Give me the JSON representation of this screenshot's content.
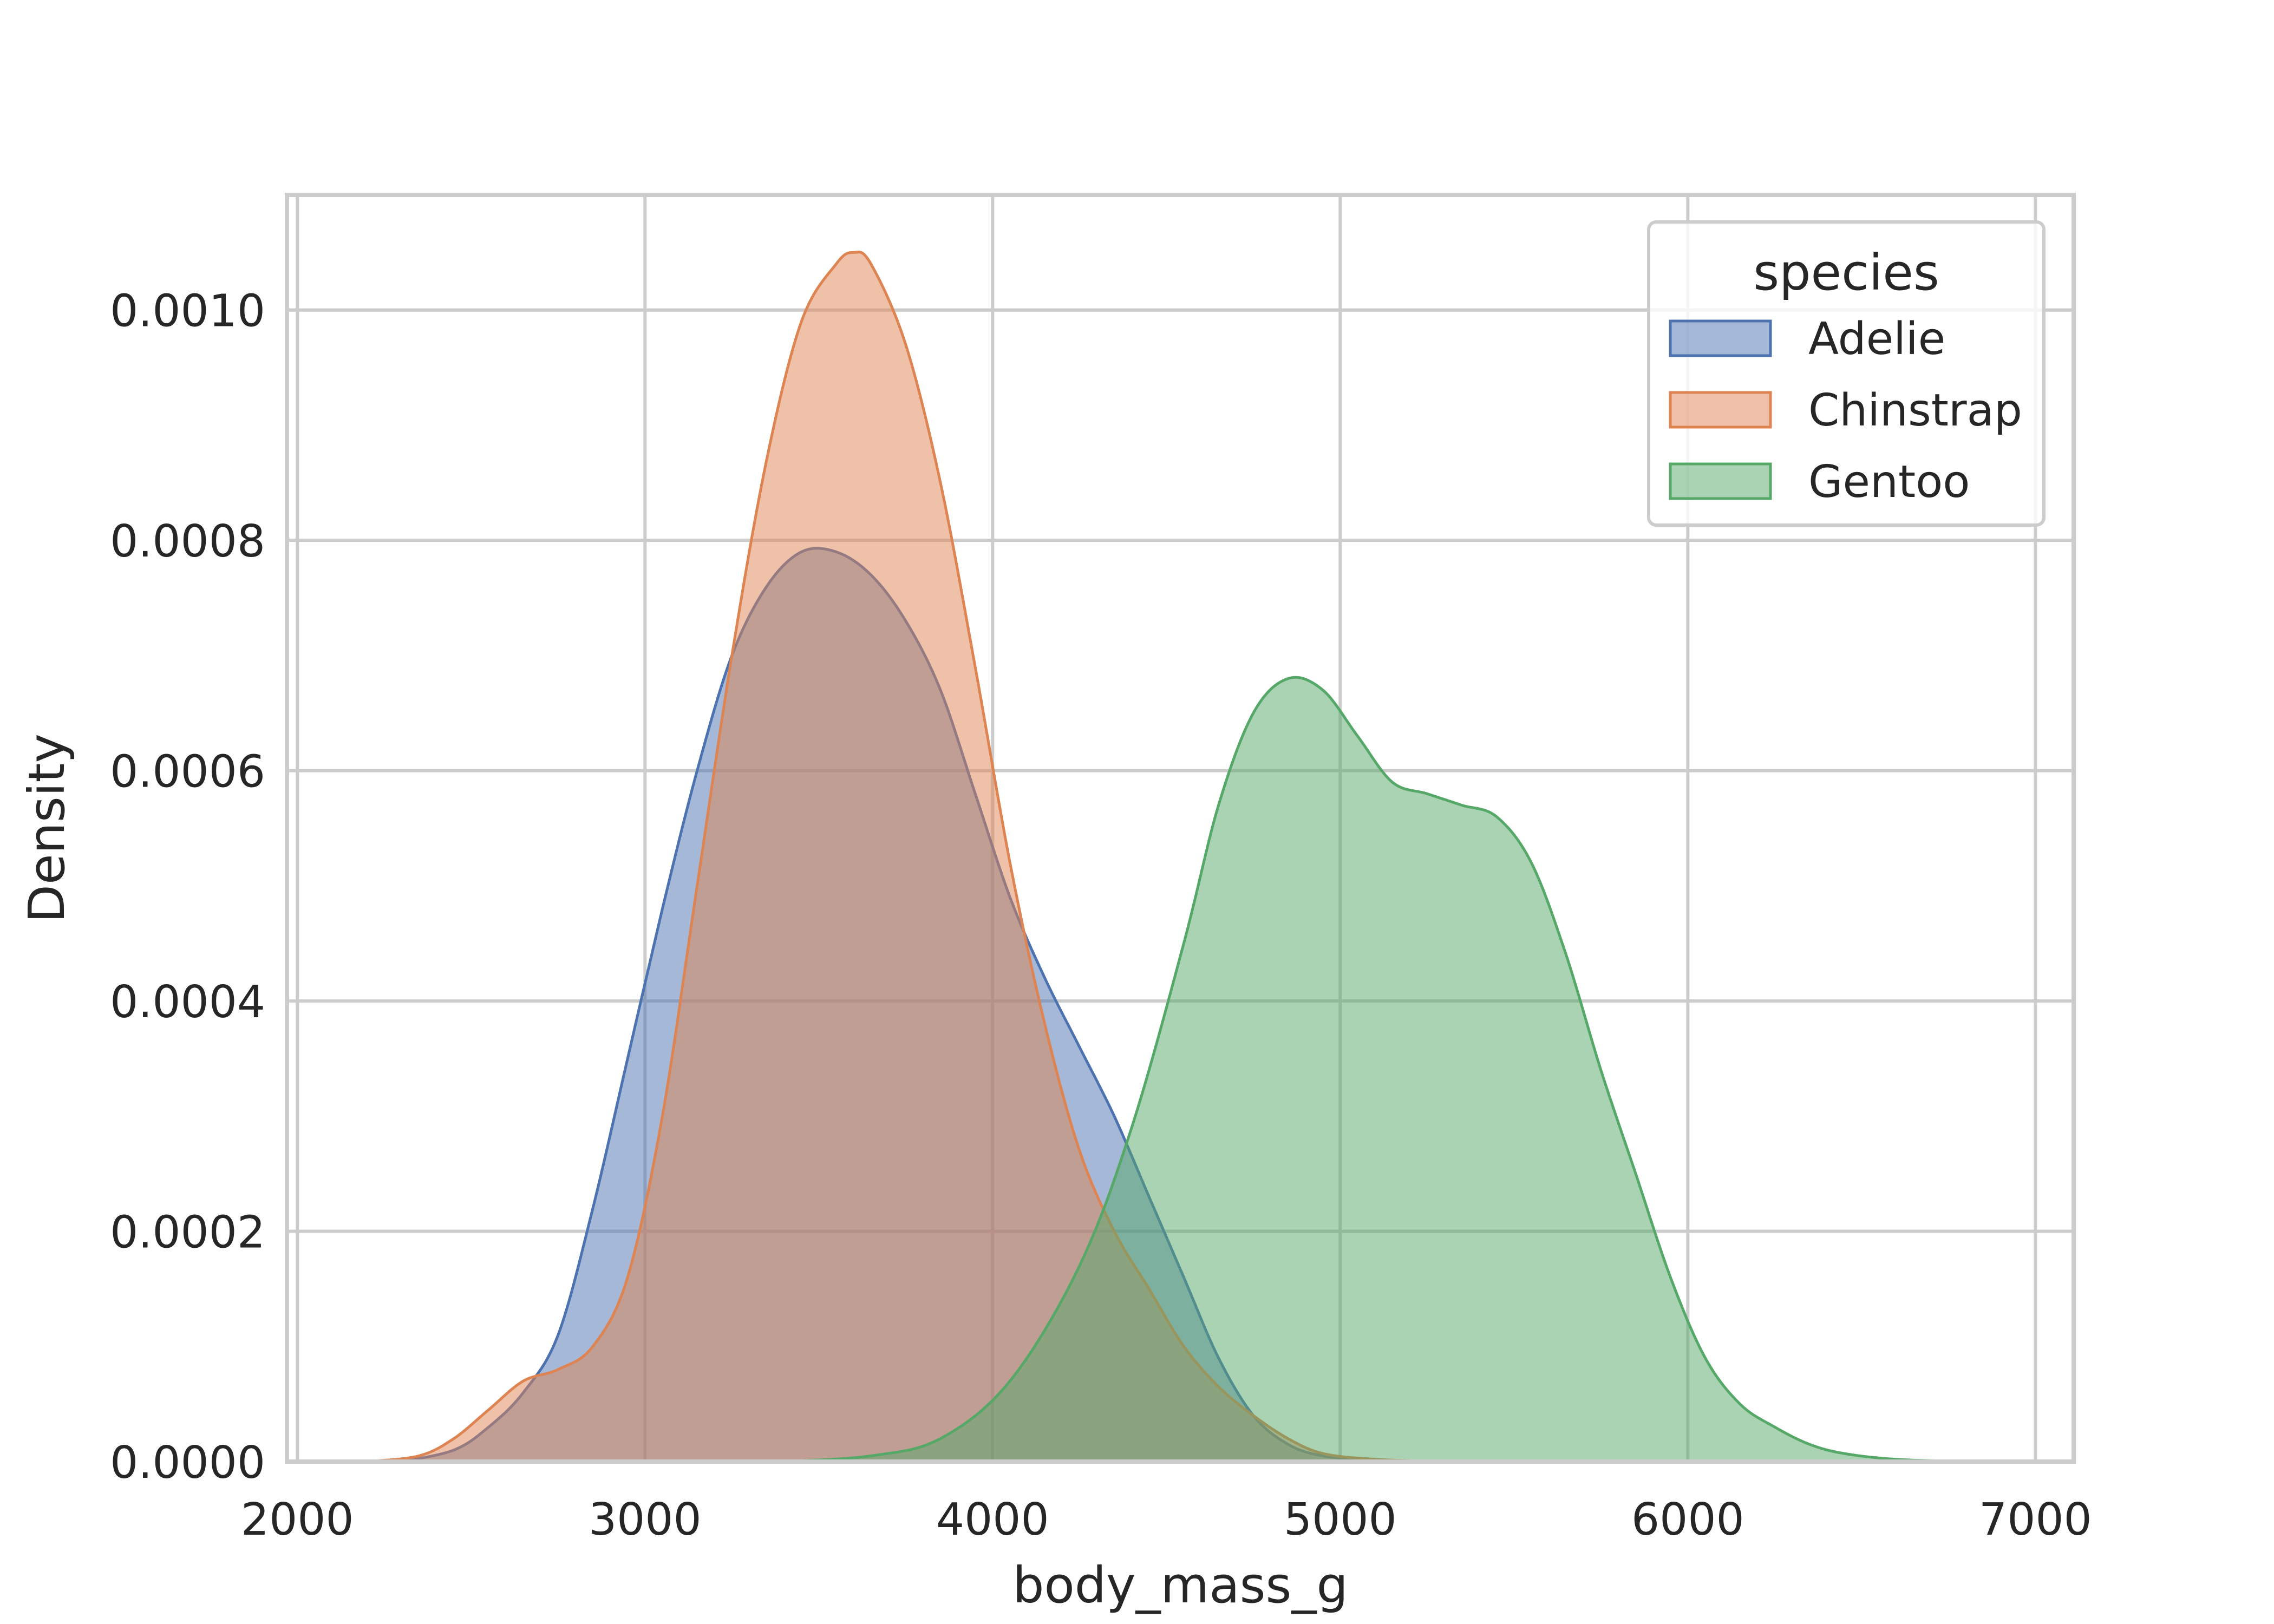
{
  "chart_data": {
    "type": "area",
    "title": "",
    "xlabel": "body_mass_g",
    "ylabel": "Density",
    "xlim": [
      1970,
      7110
    ],
    "ylim": [
      0,
      0.0011
    ],
    "xticks": [
      2000,
      3000,
      4000,
      5000,
      6000,
      7000
    ],
    "xtick_labels": [
      "2000",
      "3000",
      "4000",
      "5000",
      "6000",
      "7000"
    ],
    "yticks": [
      0,
      0.0002,
      0.0004,
      0.0006,
      0.0008,
      0.001
    ],
    "ytick_labels": [
      "0.0000",
      "0.0002",
      "0.0004",
      "0.0006",
      "0.0008",
      "0.0010"
    ],
    "grid": true,
    "legend": {
      "title": "species",
      "placement": "top-right"
    },
    "series": [
      {
        "name": "Adelie",
        "color": "#4c72b0",
        "points": [
          [
            2300,
            0
          ],
          [
            2450,
            1e-05
          ],
          [
            2550,
            3e-05
          ],
          [
            2650,
            6e-05
          ],
          [
            2750,
            0.00011
          ],
          [
            2850,
            0.00022
          ],
          [
            2950,
            0.00035
          ],
          [
            3050,
            0.00048
          ],
          [
            3150,
            0.0006
          ],
          [
            3250,
            0.0007
          ],
          [
            3350,
            0.00076
          ],
          [
            3450,
            0.00079
          ],
          [
            3550,
            0.00079
          ],
          [
            3650,
            0.00077
          ],
          [
            3750,
            0.00073
          ],
          [
            3850,
            0.00067
          ],
          [
            3950,
            0.00058
          ],
          [
            4050,
            0.00049
          ],
          [
            4150,
            0.00042
          ],
          [
            4250,
            0.00036
          ],
          [
            4350,
            0.0003
          ],
          [
            4450,
            0.00023
          ],
          [
            4550,
            0.00016
          ],
          [
            4650,
            9e-05
          ],
          [
            4750,
            4e-05
          ],
          [
            4850,
            1.5e-05
          ],
          [
            4950,
            5e-06
          ],
          [
            5100,
            1e-06
          ],
          [
            5300,
            0
          ]
        ]
      },
      {
        "name": "Chinstrap",
        "color": "#dd8452",
        "points": [
          [
            2200,
            0
          ],
          [
            2350,
            5e-06
          ],
          [
            2450,
            2e-05
          ],
          [
            2550,
            4.5e-05
          ],
          [
            2650,
            7e-05
          ],
          [
            2750,
            8e-05
          ],
          [
            2850,
            0.0001
          ],
          [
            2950,
            0.00016
          ],
          [
            3050,
            0.0003
          ],
          [
            3150,
            0.0005
          ],
          [
            3250,
            0.0007
          ],
          [
            3350,
            0.00087
          ],
          [
            3450,
            0.00099
          ],
          [
            3550,
            0.00104
          ],
          [
            3600,
            0.00105
          ],
          [
            3650,
            0.00104
          ],
          [
            3750,
            0.00097
          ],
          [
            3850,
            0.00085
          ],
          [
            3950,
            0.00069
          ],
          [
            4050,
            0.00052
          ],
          [
            4150,
            0.00038
          ],
          [
            4250,
            0.00027
          ],
          [
            4350,
            0.0002
          ],
          [
            4450,
            0.00015
          ],
          [
            4550,
            0.0001
          ],
          [
            4650,
            6.5e-05
          ],
          [
            4750,
            4e-05
          ],
          [
            4850,
            2e-05
          ],
          [
            4950,
            7e-06
          ],
          [
            5100,
            2e-06
          ],
          [
            5300,
            0
          ]
        ]
      },
      {
        "name": "Gentoo",
        "color": "#55a868",
        "points": [
          [
            3400,
            0
          ],
          [
            3650,
            5e-06
          ],
          [
            3850,
            2e-05
          ],
          [
            4050,
            7e-05
          ],
          [
            4250,
            0.00017
          ],
          [
            4400,
            0.00029
          ],
          [
            4550,
            0.00045
          ],
          [
            4650,
            0.00057
          ],
          [
            4750,
            0.00065
          ],
          [
            4850,
            0.00068
          ],
          [
            4950,
            0.00067
          ],
          [
            5050,
            0.00063
          ],
          [
            5150,
            0.00059
          ],
          [
            5250,
            0.00058
          ],
          [
            5350,
            0.00057
          ],
          [
            5450,
            0.00056
          ],
          [
            5550,
            0.00052
          ],
          [
            5650,
            0.00044
          ],
          [
            5750,
            0.00034
          ],
          [
            5850,
            0.00025
          ],
          [
            5950,
            0.00016
          ],
          [
            6050,
            9e-05
          ],
          [
            6150,
            5e-05
          ],
          [
            6250,
            3e-05
          ],
          [
            6350,
            1.5e-05
          ],
          [
            6450,
            7e-06
          ],
          [
            6600,
            2e-06
          ],
          [
            6800,
            0
          ]
        ]
      }
    ]
  }
}
